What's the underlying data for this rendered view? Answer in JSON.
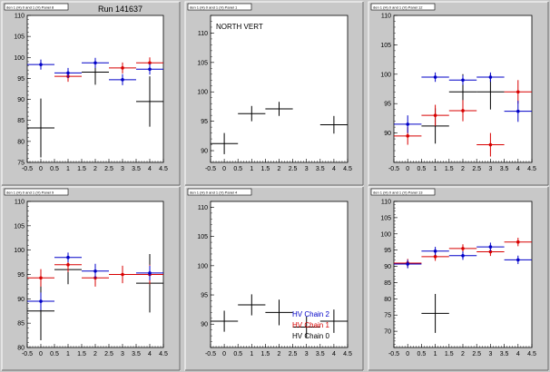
{
  "colors": {
    "black": "#000000",
    "red": "#d80000",
    "blue": "#0000c8",
    "background": "#c8c8c8",
    "plot": "#ffffff"
  },
  "chart_data": [
    {
      "type": "scatter",
      "title": "den 1 (H) 0 and 1 (V) Panel 8",
      "annotation": "Run 141637",
      "xlim": [
        -0.5,
        4.5
      ],
      "xticks": [
        -0.5,
        0,
        0.5,
        1,
        1.5,
        2,
        2.5,
        3,
        3.5,
        4,
        4.5
      ],
      "xtick_labels": [
        "-0.5",
        "0",
        "0.5",
        "1",
        "1.5",
        "2",
        "2.5",
        "3",
        "3.5",
        "4",
        "4.5"
      ],
      "ylim": [
        75,
        110
      ],
      "yticks": [
        75,
        80,
        85,
        90,
        95,
        100,
        105,
        110
      ],
      "series": [
        {
          "color": "black",
          "points": [
            {
              "x": 0,
              "y": 83.2,
              "err": 7
            },
            {
              "x": 2,
              "y": 96.5,
              "err": 3
            },
            {
              "x": 4,
              "y": 89.5,
              "err": 6
            }
          ]
        },
        {
          "color": "red",
          "points": [
            {
              "x": 1,
              "y": 95.5,
              "err": 1.3
            },
            {
              "x": 3,
              "y": 97.5,
              "err": 1.3
            },
            {
              "x": 4,
              "y": 98.7,
              "err": 1.3
            }
          ]
        },
        {
          "color": "blue",
          "points": [
            {
              "x": 0,
              "y": 98.3,
              "err": 1.2
            },
            {
              "x": 1,
              "y": 96.3,
              "err": 1.2
            },
            {
              "x": 2,
              "y": 98.7,
              "err": 1.2
            },
            {
              "x": 3,
              "y": 94.7,
              "err": 1.3
            },
            {
              "x": 4,
              "y": 97.2,
              "err": 1.3
            }
          ]
        }
      ]
    },
    {
      "type": "scatter",
      "title": "den 1 (H) 0 and 1 (V) Panel 1",
      "annotation": "NORTH VERT",
      "xlim": [
        -0.5,
        4.5
      ],
      "xticks": [
        -0.5,
        0,
        0.5,
        1,
        1.5,
        2,
        2.5,
        3,
        3.5,
        4,
        4.5
      ],
      "xtick_labels": [
        "-0.5",
        "0",
        "0.5",
        "1",
        "1.5",
        "2",
        "2.5",
        "3",
        "3.5",
        "4",
        "4.5"
      ],
      "ylim": [
        88,
        113
      ],
      "yticks": [
        90,
        95,
        100,
        105,
        110
      ],
      "series": [
        {
          "color": "black",
          "points": [
            {
              "x": 0,
              "y": 91.2,
              "err": 1.8
            },
            {
              "x": 1,
              "y": 96.3,
              "err": 1.3
            },
            {
              "x": 2,
              "y": 97.1,
              "err": 1.2
            },
            {
              "x": 4,
              "y": 94.4,
              "err": 1.5
            }
          ]
        }
      ]
    },
    {
      "type": "scatter",
      "title": "den 1 (H) 0 and 1 (V) Panel 12",
      "annotation": "",
      "xlim": [
        -0.5,
        4.5
      ],
      "xticks": [
        -0.5,
        0,
        0.5,
        1,
        1.5,
        2,
        2.5,
        3,
        3.5,
        4,
        4.5
      ],
      "xtick_labels": [
        "-0.5",
        "0",
        "0.5",
        "1",
        "1.5",
        "2",
        "2.5",
        "3",
        "3.5",
        "4",
        "4.5"
      ],
      "ylim": [
        85,
        110
      ],
      "yticks": [
        90,
        95,
        100,
        105,
        110
      ],
      "series": [
        {
          "color": "black",
          "points": [
            {
              "x": 1,
              "y": 91.2,
              "err": 3
            },
            {
              "x": 2,
              "y": 97,
              "err": 3
            },
            {
              "x": 3,
              "y": 97,
              "err": 3
            }
          ]
        },
        {
          "color": "red",
          "points": [
            {
              "x": 0,
              "y": 89.5,
              "err": 1.5
            },
            {
              "x": 1,
              "y": 93,
              "err": 1.8
            },
            {
              "x": 2,
              "y": 93.8,
              "err": 1.8
            },
            {
              "x": 3,
              "y": 88,
              "err": 2
            },
            {
              "x": 4,
              "y": 97,
              "err": 2
            }
          ]
        },
        {
          "color": "blue",
          "points": [
            {
              "x": 0,
              "y": 91.5,
              "err": 1.5
            },
            {
              "x": 1,
              "y": 99.5,
              "err": 0.8
            },
            {
              "x": 2,
              "y": 99,
              "err": 0.8
            },
            {
              "x": 3,
              "y": 99.5,
              "err": 0.8
            },
            {
              "x": 4,
              "y": 93.7,
              "err": 1.8
            }
          ]
        }
      ]
    },
    {
      "type": "scatter",
      "title": "den 1 (H) 0 and 1 (V) Panel 9",
      "annotation": "",
      "xlim": [
        -0.5,
        4.5
      ],
      "xticks": [
        -0.5,
        0,
        0.5,
        1,
        1.5,
        2,
        2.5,
        3,
        3.5,
        4,
        4.5
      ],
      "xtick_labels": [
        "-0.5",
        "0",
        "0.5",
        "1",
        "1.5",
        "2",
        "2.5",
        "3",
        "3.5",
        "4",
        "4.5"
      ],
      "ylim": [
        80,
        110
      ],
      "yticks": [
        80,
        85,
        90,
        95,
        100,
        105,
        110
      ],
      "series": [
        {
          "color": "black",
          "points": [
            {
              "x": 0,
              "y": 87.5,
              "err": 6
            },
            {
              "x": 1,
              "y": 96,
              "err": 3
            },
            {
              "x": 4,
              "y": 93.2,
              "err": 6
            }
          ]
        },
        {
          "color": "red",
          "points": [
            {
              "x": 0,
              "y": 94.3,
              "err": 1.8
            },
            {
              "x": 1,
              "y": 97,
              "err": 1.5
            },
            {
              "x": 2,
              "y": 94.3,
              "err": 1.8
            },
            {
              "x": 3,
              "y": 95,
              "err": 1.8
            },
            {
              "x": 4,
              "y": 95,
              "err": 2
            }
          ]
        },
        {
          "color": "blue",
          "points": [
            {
              "x": 0,
              "y": 89.5,
              "err": 1.8
            },
            {
              "x": 1,
              "y": 98.5,
              "err": 1
            },
            {
              "x": 2,
              "y": 95.7,
              "err": 1.5
            },
            {
              "x": 4,
              "y": 95.3,
              "err": 1.5
            }
          ]
        }
      ]
    },
    {
      "type": "scatter",
      "title": "den 1 (H) 0 and 1 (V) Panel 4",
      "annotation": "",
      "xlim": [
        -0.5,
        4.5
      ],
      "xticks": [
        -0.5,
        0,
        0.5,
        1,
        1.5,
        2,
        2.5,
        3,
        3.5,
        4,
        4.5
      ],
      "xtick_labels": [
        "-0.5",
        "0",
        "0.5",
        "1",
        "1.5",
        "2",
        "2.5",
        "3",
        "3.5",
        "4",
        "4.5"
      ],
      "ylim": [
        86,
        111
      ],
      "yticks": [
        90,
        95,
        100,
        105,
        110
      ],
      "legend": [
        {
          "label": "HV Chain 2",
          "color": "blue"
        },
        {
          "label": "HV Chain 1",
          "color": "red"
        },
        {
          "label": "HV Chain 0",
          "color": "black"
        }
      ],
      "series": [
        {
          "color": "black",
          "points": [
            {
              "x": 0,
              "y": 90.5,
              "err": 1.8
            },
            {
              "x": 1,
              "y": 93.3,
              "err": 1.8
            },
            {
              "x": 2,
              "y": 92,
              "err": 2.2
            },
            {
              "x": 3,
              "y": 89.5,
              "err": 1.8
            },
            {
              "x": 4,
              "y": 90.5,
              "err": 2
            }
          ]
        }
      ]
    },
    {
      "type": "scatter",
      "title": "den 1 (H) 0 and 1 (V) Panel 13",
      "annotation": "",
      "xlim": [
        -0.5,
        4.5
      ],
      "xticks": [
        -0.5,
        0,
        0.5,
        1,
        1.5,
        2,
        2.5,
        3,
        3.5,
        4,
        4.5
      ],
      "xtick_labels": [
        "-0.5",
        "0",
        "0.5",
        "1",
        "1.5",
        "2",
        "2.5",
        "3",
        "3.5",
        "4",
        "4.5"
      ],
      "ylim": [
        65,
        110
      ],
      "yticks": [
        70,
        75,
        80,
        85,
        90,
        95,
        100,
        105,
        110
      ],
      "series": [
        {
          "color": "black",
          "points": [
            {
              "x": 1,
              "y": 75.5,
              "err": 6
            }
          ]
        },
        {
          "color": "red",
          "points": [
            {
              "x": 0,
              "y": 91,
              "err": 1.3
            },
            {
              "x": 1,
              "y": 93,
              "err": 1.3
            },
            {
              "x": 2,
              "y": 95.5,
              "err": 1.3
            },
            {
              "x": 3,
              "y": 94.5,
              "err": 1.3
            },
            {
              "x": 4,
              "y": 97.5,
              "err": 1.3
            }
          ]
        },
        {
          "color": "blue",
          "points": [
            {
              "x": 0,
              "y": 90.7,
              "err": 1.3
            },
            {
              "x": 1,
              "y": 94.7,
              "err": 1.3
            },
            {
              "x": 2,
              "y": 93.3,
              "err": 1.3
            },
            {
              "x": 3,
              "y": 96,
              "err": 1.3
            },
            {
              "x": 4,
              "y": 92,
              "err": 1.3
            }
          ]
        }
      ]
    }
  ]
}
